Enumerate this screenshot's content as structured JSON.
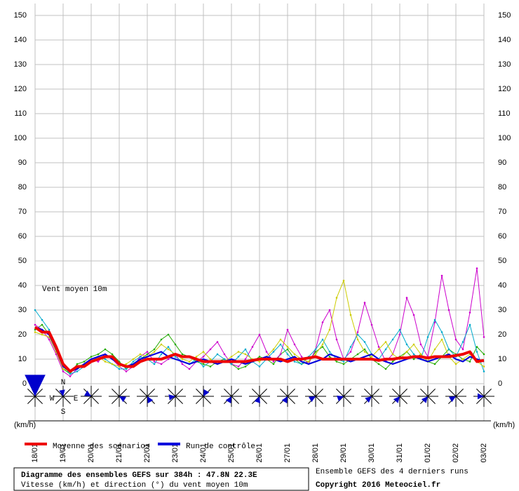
{
  "chart_data": {
    "type": "line",
    "annotation": "Vent moyen 10m",
    "y_unit_label": "(km/h)",
    "title": "Diagramme des ensembles GEFS sur 384h : 47.8N 22.3E",
    "subtitle": "Vitesse (km/h) et direction (°) du vent moyen 10m",
    "source_note": "Ensemble GEFS des 4 derniers runs",
    "copyright": "Copyright 2016 Meteociel.fr",
    "compass_labels": [
      "N",
      "W",
      "E",
      "S"
    ],
    "xlim": [
      0,
      384
    ],
    "ylim": [
      0,
      150
    ],
    "yticks": [
      0,
      10,
      20,
      30,
      40,
      50,
      60,
      70,
      80,
      90,
      100,
      110,
      120,
      130,
      140,
      150
    ],
    "xticks": [
      {
        "value": 0,
        "label": "18/01"
      },
      {
        "value": 24,
        "label": "19/01"
      },
      {
        "value": 48,
        "label": "20/01"
      },
      {
        "value": 72,
        "label": "21/01"
      },
      {
        "value": 96,
        "label": "22/01"
      },
      {
        "value": 120,
        "label": "23/01"
      },
      {
        "value": 144,
        "label": "24/01"
      },
      {
        "value": 168,
        "label": "25/01"
      },
      {
        "value": 192,
        "label": "26/01"
      },
      {
        "value": 216,
        "label": "27/01"
      },
      {
        "value": 240,
        "label": "28/01"
      },
      {
        "value": 264,
        "label": "29/01"
      },
      {
        "value": 288,
        "label": "30/01"
      },
      {
        "value": 312,
        "label": "31/01"
      },
      {
        "value": 336,
        "label": "01/02"
      },
      {
        "value": 360,
        "label": "02/02"
      },
      {
        "value": 384,
        "label": "03/02"
      }
    ],
    "grid": true,
    "x": [
      0,
      6,
      12,
      18,
      24,
      30,
      36,
      42,
      48,
      54,
      60,
      66,
      72,
      78,
      84,
      90,
      96,
      102,
      108,
      114,
      120,
      126,
      132,
      138,
      144,
      150,
      156,
      162,
      168,
      174,
      180,
      186,
      192,
      198,
      204,
      210,
      216,
      222,
      228,
      234,
      240,
      246,
      252,
      258,
      264,
      270,
      276,
      282,
      288,
      294,
      300,
      306,
      312,
      318,
      324,
      330,
      336,
      342,
      348,
      354,
      360,
      366,
      372,
      378,
      384
    ],
    "members": [
      {
        "color": "#22aa00",
        "values": [
          22,
          24,
          20,
          14,
          6,
          4,
          8,
          9,
          11,
          12,
          14,
          12,
          9,
          6,
          8,
          10,
          12,
          14,
          18,
          20,
          16,
          12,
          11,
          9,
          8,
          7,
          9,
          10,
          8,
          6,
          7,
          9,
          11,
          10,
          8,
          12,
          14,
          10,
          8,
          9,
          13,
          15,
          11,
          9,
          8,
          10,
          12,
          14,
          10,
          8,
          6,
          9,
          11,
          13,
          10,
          12,
          9,
          8,
          11,
          14,
          12,
          10,
          9,
          15,
          12
        ]
      },
      {
        "color": "#cc00cc",
        "values": [
          24,
          22,
          18,
          12,
          5,
          3,
          6,
          8,
          10,
          9,
          12,
          10,
          7,
          5,
          7,
          11,
          13,
          9,
          8,
          10,
          12,
          8,
          6,
          9,
          11,
          14,
          17,
          12,
          8,
          7,
          10,
          15,
          20,
          13,
          9,
          12,
          22,
          16,
          11,
          8,
          14,
          25,
          30,
          18,
          10,
          13,
          21,
          33,
          24,
          15,
          9,
          12,
          20,
          35,
          28,
          16,
          11,
          25,
          44,
          30,
          18,
          14,
          29,
          47,
          19
        ]
      },
      {
        "color": "#00aacc",
        "values": [
          30,
          26,
          22,
          15,
          7,
          4,
          5,
          7,
          9,
          11,
          10,
          8,
          6,
          6,
          9,
          11,
          10,
          8,
          12,
          15,
          11,
          9,
          8,
          10,
          7,
          9,
          12,
          10,
          8,
          11,
          14,
          9,
          7,
          10,
          13,
          16,
          12,
          9,
          8,
          11,
          14,
          18,
          13,
          10,
          9,
          15,
          20,
          17,
          12,
          10,
          14,
          18,
          22,
          16,
          12,
          10,
          19,
          26,
          21,
          14,
          11,
          17,
          24,
          13,
          5
        ]
      },
      {
        "color": "#cccc00",
        "values": [
          21,
          20,
          19,
          13,
          6,
          5,
          7,
          8,
          10,
          11,
          9,
          8,
          7,
          8,
          10,
          12,
          11,
          13,
          16,
          14,
          12,
          10,
          9,
          11,
          13,
          10,
          8,
          9,
          11,
          13,
          12,
          10,
          9,
          11,
          14,
          18,
          15,
          12,
          10,
          9,
          12,
          16,
          22,
          35,
          42,
          28,
          18,
          13,
          11,
          14,
          17,
          12,
          10,
          13,
          16,
          12,
          9,
          14,
          18,
          11,
          8,
          10,
          12,
          9,
          7
        ]
      }
    ],
    "series": [
      {
        "name": "Run de contrôle",
        "color": "#0000dd",
        "values": [
          23,
          22,
          20,
          14,
          7,
          5,
          6,
          8,
          10,
          11,
          12,
          10,
          8,
          7,
          8,
          10,
          11,
          12,
          13,
          11,
          10,
          9,
          8,
          9,
          10,
          9,
          8,
          9,
          10,
          9,
          8,
          9,
          10,
          11,
          10,
          9,
          10,
          11,
          9,
          8,
          9,
          10,
          12,
          11,
          10,
          9,
          10,
          11,
          12,
          10,
          9,
          8,
          9,
          10,
          11,
          10,
          9,
          10,
          11,
          12,
          10,
          9,
          11,
          10,
          9
        ]
      },
      {
        "name": "Moyenne des scénarios",
        "color": "#ee0000",
        "values": [
          23,
          21,
          21,
          15,
          8,
          5,
          7,
          7,
          9,
          10,
          11,
          11,
          8,
          7,
          7,
          9,
          10,
          10,
          10,
          11,
          12,
          11,
          11,
          10,
          9,
          9,
          9,
          9,
          9,
          9,
          9,
          9.5,
          10,
          10,
          10,
          10,
          9,
          10,
          10,
          10.5,
          11,
          10,
          10,
          10,
          10,
          10,
          10,
          10,
          10,
          9.5,
          10,
          10,
          10.5,
          10.5,
          11,
          11,
          10.5,
          11,
          11,
          11,
          11.5,
          12,
          13,
          9,
          9.5
        ]
      }
    ],
    "directions": [
      0,
      350,
      300,
      120,
      150,
      260,
      30,
      210,
      200,
      210,
      240,
      250,
      230,
      220,
      220,
      240,
      270
    ]
  }
}
